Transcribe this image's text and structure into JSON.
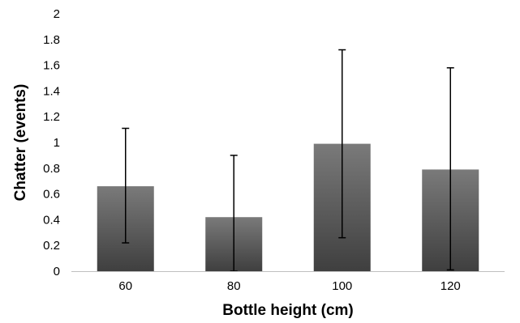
{
  "chart_data": {
    "type": "bar",
    "categories": [
      "60",
      "80",
      "100",
      "120"
    ],
    "series": [
      {
        "values": [
          0.66,
          0.42,
          0.99,
          0.79
        ],
        "error_low": [
          0.22,
          0.0,
          0.26,
          0.01
        ],
        "error_high": [
          1.11,
          0.9,
          1.72,
          1.58
        ]
      }
    ],
    "xlabel": "Bottle height (cm)",
    "ylabel": "Chatter (events)",
    "ylim": [
      0,
      2
    ],
    "yticks": [
      "0",
      "0.2",
      "0.4",
      "0.6",
      "0.8",
      "1",
      "1.2",
      "1.4",
      "1.6",
      "1.8",
      "2"
    ],
    "grid": false,
    "legend": "none",
    "colors": {
      "bar_top": "#7a7a7a",
      "bar_bottom": "#3f3f3f",
      "error_bar": "#000000",
      "axis": "#bfbfbf"
    }
  }
}
